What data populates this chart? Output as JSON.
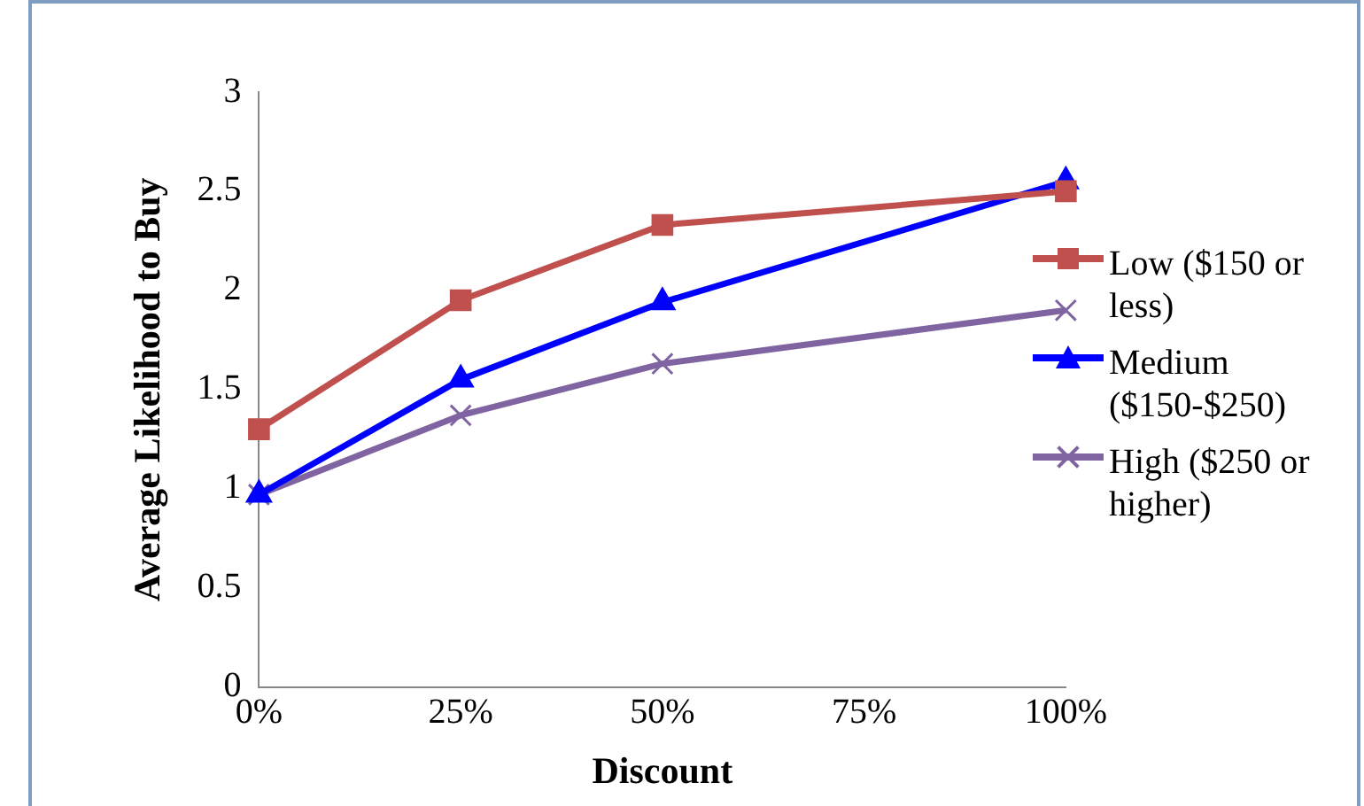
{
  "chart_data": {
    "type": "line",
    "xlabel": "Discount",
    "ylabel": "Average Likelihood to Buy",
    "x": [
      0,
      25,
      50,
      100
    ],
    "xlim": [
      0,
      100
    ],
    "xticks": [
      {
        "value": 0,
        "label": "0%"
      },
      {
        "value": 25,
        "label": "25%"
      },
      {
        "value": 50,
        "label": "50%"
      },
      {
        "value": 75,
        "label": "75%"
      },
      {
        "value": 100,
        "label": "100%"
      }
    ],
    "ylim": [
      0,
      3
    ],
    "yticks": [
      0,
      0.5,
      1,
      1.5,
      2,
      2.5,
      3
    ],
    "grid": false,
    "legend": "right",
    "series": [
      {
        "name": "Low ($150 or less)",
        "color": "#c0504d",
        "marker": "square",
        "values": [
          1.3,
          1.95,
          2.33,
          2.5
        ]
      },
      {
        "name": "Medium ($150-$250)",
        "color": "#0000ff",
        "marker": "triangle",
        "values": [
          0.97,
          1.55,
          1.94,
          2.55
        ]
      },
      {
        "name": "High ($250 or higher)",
        "color": "#8064a2",
        "marker": "cross",
        "values": [
          0.97,
          1.37,
          1.63,
          1.9
        ]
      }
    ]
  }
}
